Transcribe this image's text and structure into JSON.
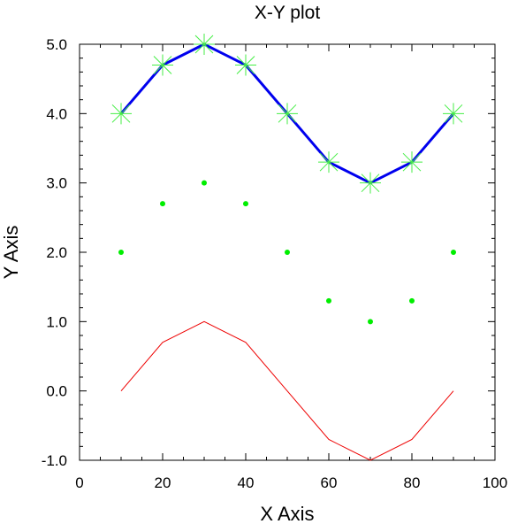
{
  "chart_data": {
    "type": "line",
    "title": "X-Y plot",
    "xlabel": "X Axis",
    "ylabel": "Y Axis",
    "xlim": [
      0,
      100
    ],
    "ylim": [
      -1.0,
      5.0
    ],
    "grid": false,
    "x_ticks": [
      0,
      20,
      40,
      60,
      80,
      100
    ],
    "x_tick_labels": [
      "0",
      "20",
      "40",
      "60",
      "80",
      "100"
    ],
    "y_ticks": [
      -1.0,
      0.0,
      1.0,
      2.0,
      3.0,
      4.0,
      5.0
    ],
    "y_tick_labels": [
      "-1.0",
      "0.0",
      "1.0",
      "2.0",
      "3.0",
      "4.0",
      "5.0"
    ],
    "x": [
      10,
      20,
      30,
      40,
      50,
      60,
      70,
      80,
      90
    ],
    "series": [
      {
        "values": [
          4.0,
          4.7,
          5.0,
          4.7,
          4.0,
          3.3,
          3.0,
          3.3,
          4.0
        ],
        "color": "#0000ee",
        "style": "line-with-star-markers",
        "marker_color": "#44ee44"
      },
      {
        "values": [
          2.0,
          2.7,
          3.0,
          2.7,
          2.0,
          1.3,
          1.0,
          1.3,
          2.0
        ],
        "color": "#00ee00",
        "style": "dot-markers"
      },
      {
        "values": [
          0.0,
          0.7,
          1.0,
          0.7,
          0.0,
          -0.7,
          -1.0,
          -0.7,
          0.0
        ],
        "color": "#ee0000",
        "style": "thin-line"
      }
    ]
  }
}
